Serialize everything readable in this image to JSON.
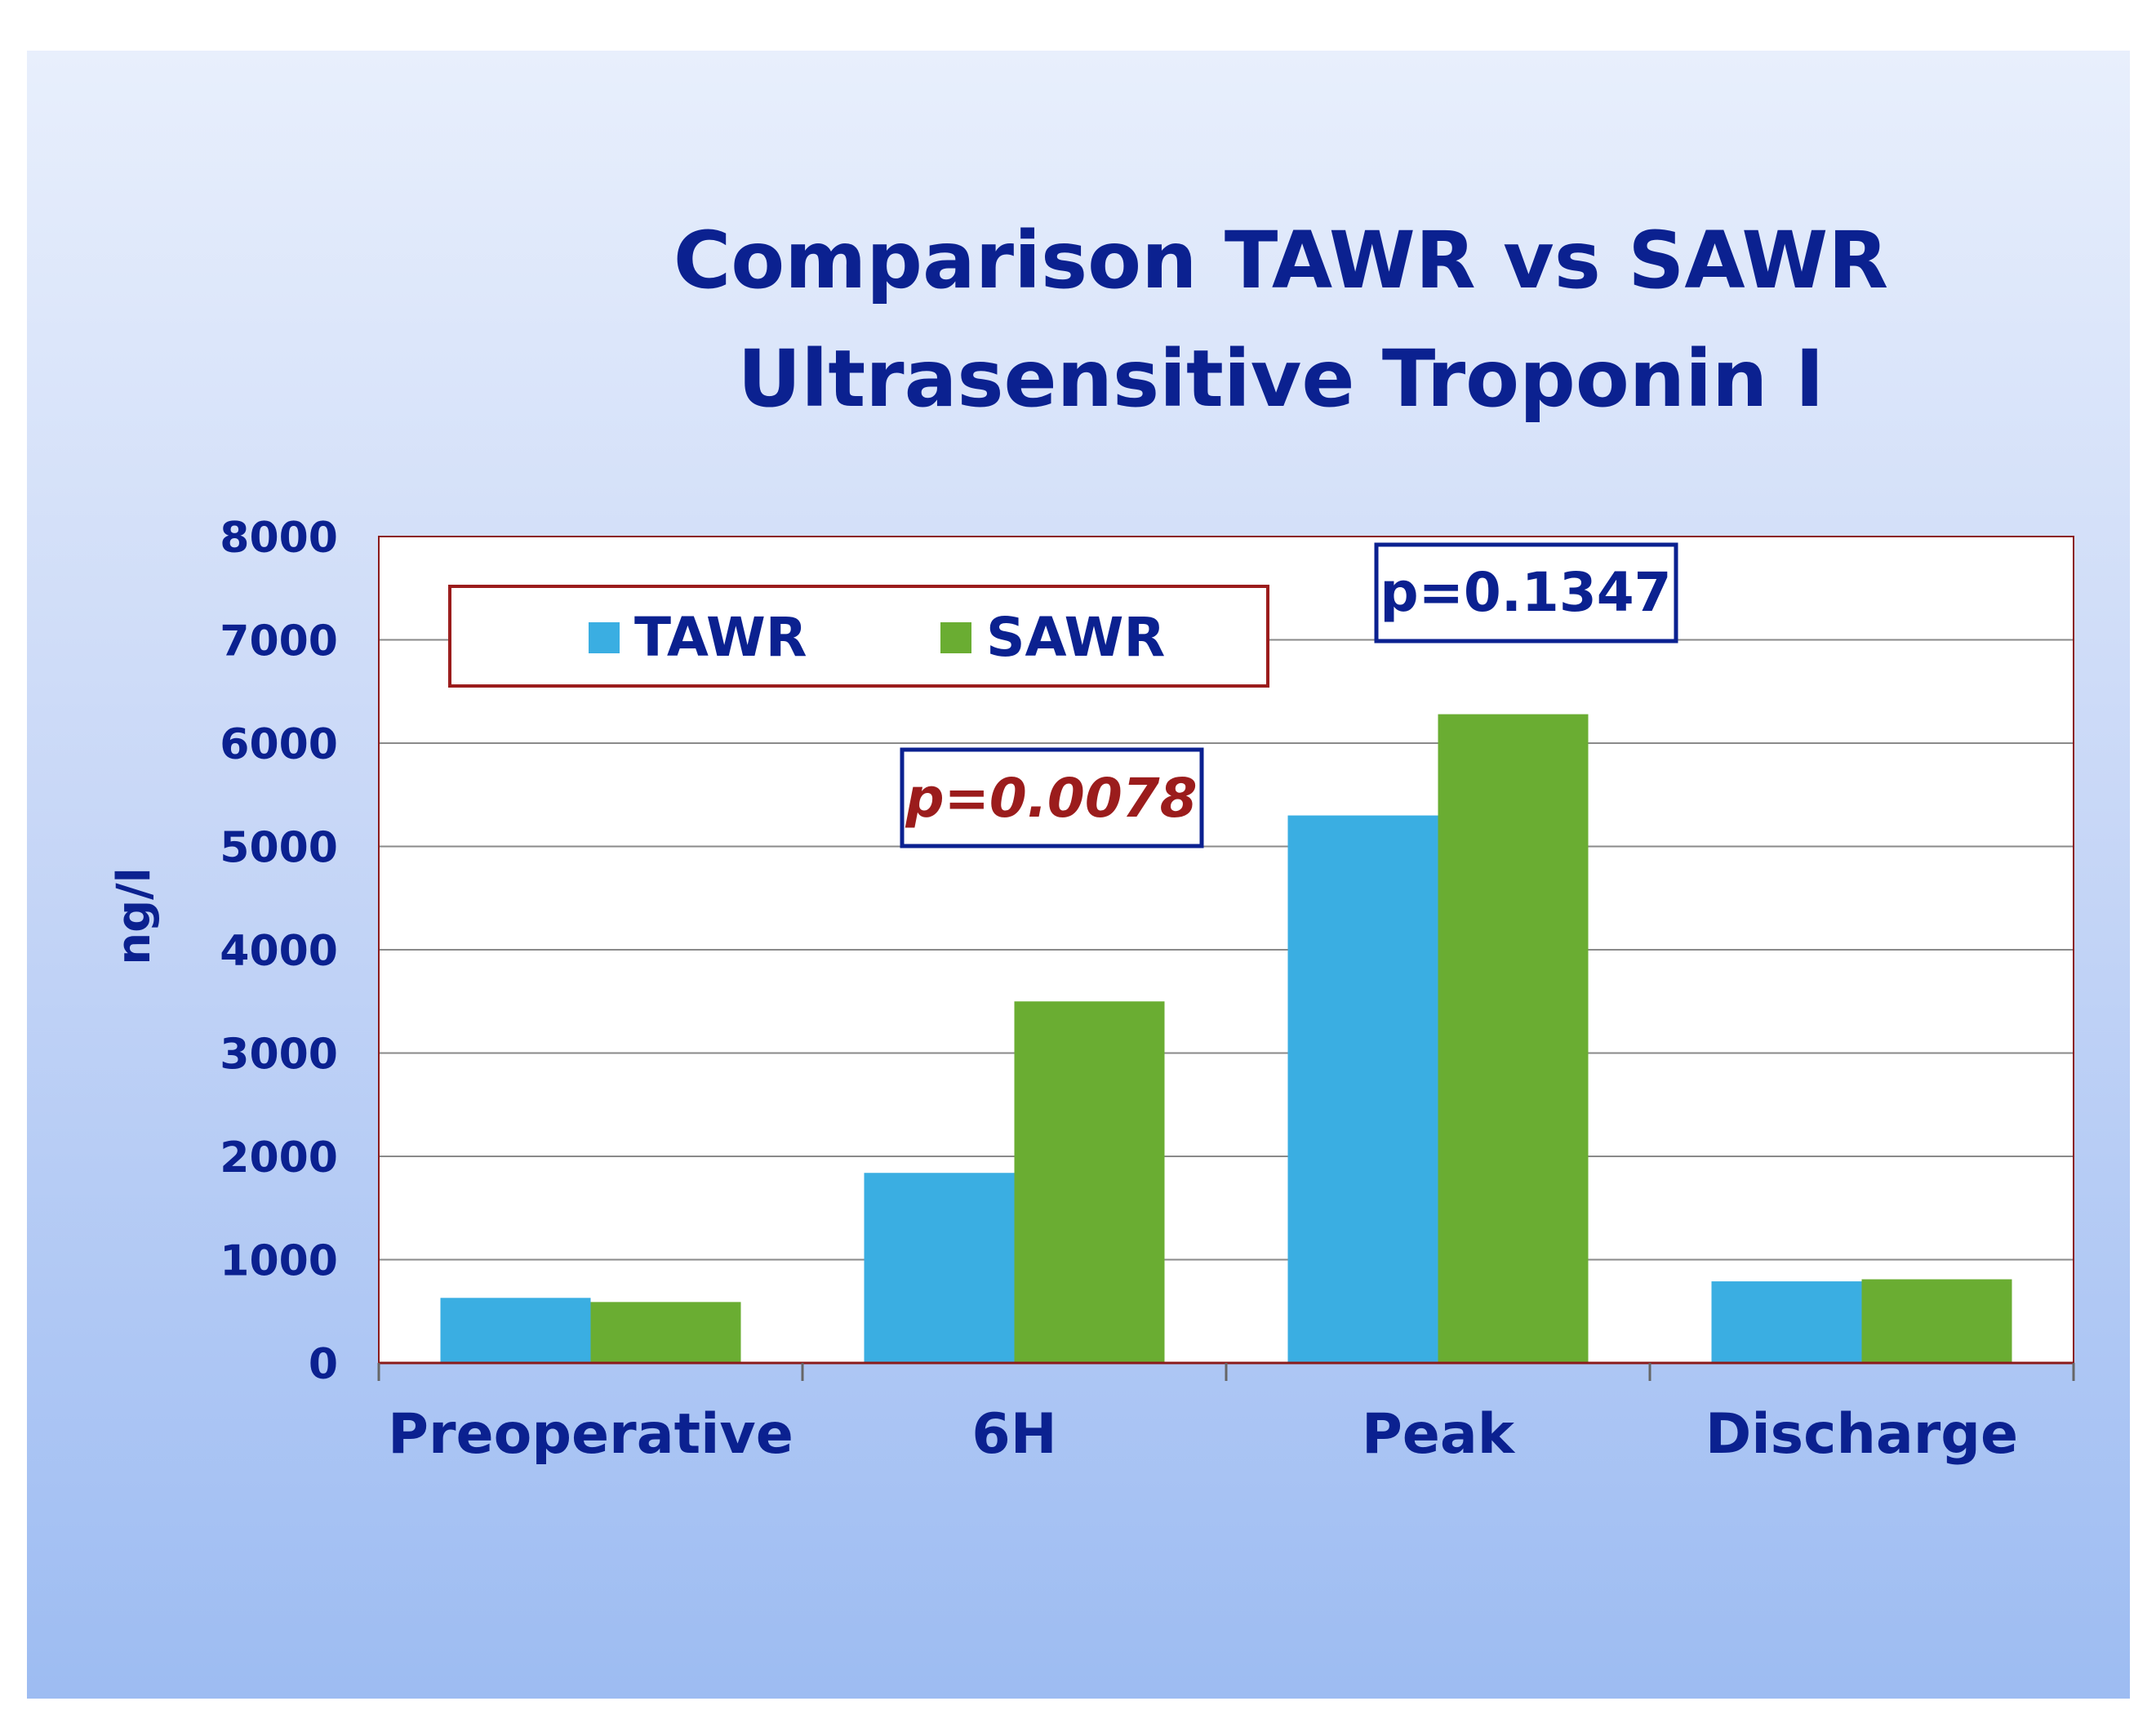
{
  "colors": {
    "title": "#0b2190",
    "plot_border": "#8b1a1a",
    "gridline": "#8a8a8a",
    "tawr": "#3aaee2",
    "sawr": "#6aad32",
    "legend_border": "#9b1c1c",
    "pvalue_box_border": "#0b2190",
    "pvalue_italic_text": "#9b1c1c",
    "pvalue_text": "#0b2190"
  },
  "chart_data": {
    "type": "bar",
    "title": "Comparison TAWR vs SAWR",
    "subtitle": "Ultrasensitive Troponin I",
    "xlabel": "",
    "ylabel": "ng/l",
    "categories": [
      "Preoperative",
      "6H",
      "Peak",
      "Discharge"
    ],
    "series": [
      {
        "name": "TAWR",
        "color": "#3aaee2",
        "values": [
          630,
          1840,
          5300,
          790
        ]
      },
      {
        "name": "SAWR",
        "color": "#6aad32",
        "values": [
          590,
          3500,
          6280,
          810
        ]
      }
    ],
    "ylim": [
      0,
      8000
    ],
    "yticks": [
      0,
      1000,
      2000,
      3000,
      4000,
      5000,
      6000,
      7000,
      8000
    ],
    "grid": true,
    "legend_position": "top-left",
    "annotations": [
      {
        "text": "p=0.0078",
        "category": "6H"
      },
      {
        "text": "p=0.1347",
        "category": "Peak"
      }
    ]
  }
}
